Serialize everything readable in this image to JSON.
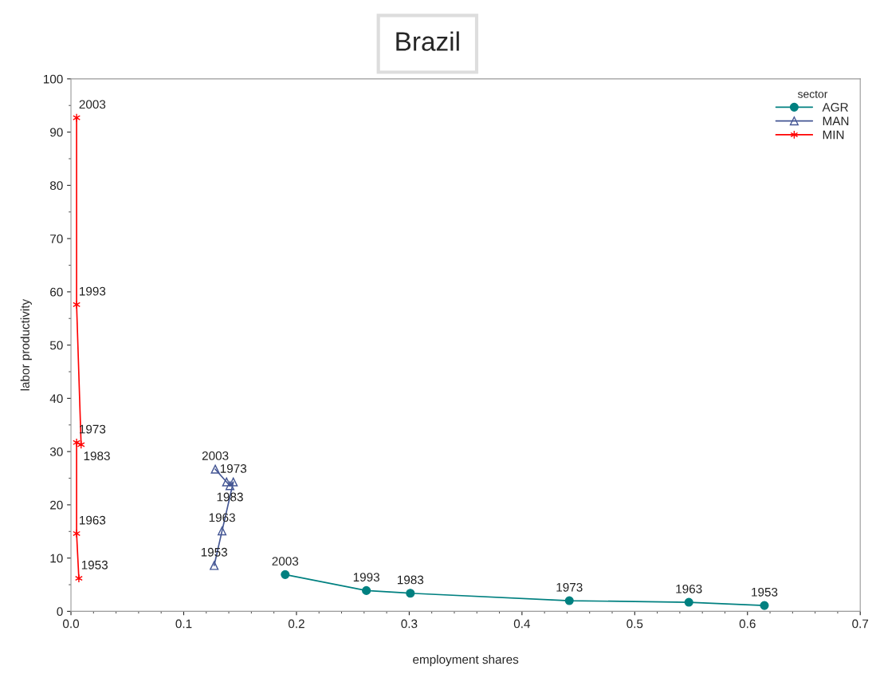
{
  "chart_data": {
    "type": "line",
    "title": "Brazil",
    "xlabel": "employment shares",
    "ylabel": "labor productivity",
    "legend_title": "sector",
    "legend": "top right",
    "grid": false,
    "xlim": [
      0,
      0.7
    ],
    "xticks": [
      {
        "value": 0,
        "label": "0.0"
      },
      0.1,
      0.2,
      0.3,
      0.4,
      0.5,
      0.6,
      0.7
    ],
    "ylim": [
      0,
      100
    ],
    "yticks": [
      0,
      10,
      20,
      30,
      40,
      50,
      60,
      70,
      80,
      90,
      100
    ],
    "series": [
      {
        "name": "AGR",
        "color": "#008080",
        "marker": "circle",
        "x": [
          0.615,
          0.548,
          0.442,
          0.301,
          0.262,
          0.19
        ],
        "values": [
          1.1,
          1.7,
          2.0,
          3.4,
          3.9,
          6.9
        ]
      },
      {
        "name": "MAN",
        "color": "#445694",
        "marker": "triangle",
        "x": [
          0.127,
          0.134,
          0.144,
          0.141,
          0.138,
          0.128
        ],
        "values": [
          8.6,
          15.1,
          24.3,
          23.6,
          24.3,
          26.7
        ]
      },
      {
        "name": "MIN",
        "color": "#ff0000",
        "marker": "cross",
        "x": [
          0.007,
          0.005,
          0.005,
          0.009,
          0.005,
          0.005
        ],
        "values": [
          6.2,
          14.6,
          31.7,
          31.3,
          57.6,
          92.7
        ]
      }
    ],
    "annotations": [
      {
        "text": "1953",
        "x": 0.615,
        "y": 1.1
      },
      {
        "text": "1963",
        "x": 0.548,
        "y": 1.7
      },
      {
        "text": "1973",
        "x": 0.442,
        "y": 2.0
      },
      {
        "text": "1983",
        "x": 0.301,
        "y": 3.4
      },
      {
        "text": "1993",
        "x": 0.262,
        "y": 3.9
      },
      {
        "text": "2003",
        "x": 0.19,
        "y": 6.9
      },
      {
        "text": "1953",
        "x": 0.127,
        "y": 8.6
      },
      {
        "text": "1963",
        "x": 0.134,
        "y": 15.1
      },
      {
        "text": "1973",
        "x": 0.144,
        "y": 24.3
      },
      {
        "text": "1983",
        "x": 0.141,
        "y": 23.6
      },
      {
        "text": "2003",
        "x": 0.128,
        "y": 26.7
      },
      {
        "text": "1953",
        "x": 0.007,
        "y": 6.2
      },
      {
        "text": "1963",
        "x": 0.005,
        "y": 14.6
      },
      {
        "text": "1973",
        "x": 0.005,
        "y": 31.7
      },
      {
        "text": "1983",
        "x": 0.009,
        "y": 31.3
      },
      {
        "text": "1993",
        "x": 0.005,
        "y": 57.6
      },
      {
        "text": "2003",
        "x": 0.005,
        "y": 92.7
      }
    ]
  }
}
